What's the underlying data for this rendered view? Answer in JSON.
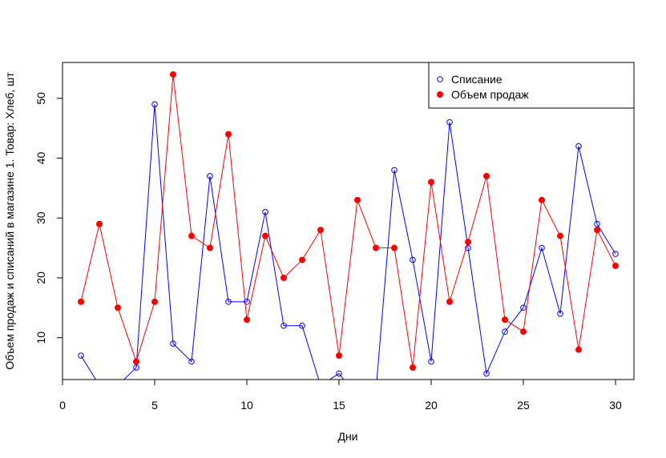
{
  "chart_data": {
    "type": "line",
    "title": "",
    "xlabel": "Дни",
    "ylabel": "Объем продаж и списаний в магазине 1. Товар: Хлеб, шт",
    "xlim": [
      0,
      31
    ],
    "ylim": [
      3,
      56
    ],
    "x_ticks": [
      0,
      5,
      10,
      15,
      20,
      25,
      30
    ],
    "y_ticks": [
      10,
      20,
      30,
      40,
      50
    ],
    "grid": false,
    "legend_position": "top-right",
    "x": [
      1,
      2,
      3,
      4,
      5,
      6,
      7,
      8,
      9,
      10,
      11,
      12,
      13,
      14,
      15,
      16,
      17,
      18,
      19,
      20,
      21,
      22,
      23,
      24,
      25,
      26,
      27,
      28,
      29,
      30
    ],
    "series": [
      {
        "name": "Списание",
        "color": "#0000ff",
        "marker": "open-circle",
        "values": [
          7,
          2,
          2,
          5,
          49,
          9,
          6,
          37,
          16,
          16,
          31,
          12,
          12,
          2,
          4,
          0,
          1,
          38,
          23,
          6,
          46,
          25,
          4,
          11,
          15,
          25,
          14,
          42,
          29,
          24
        ]
      },
      {
        "name": "Объем продаж",
        "color": "#ff0000",
        "marker": "filled-circle",
        "values": [
          16,
          29,
          15,
          6,
          16,
          54,
          27,
          25,
          44,
          13,
          27,
          20,
          23,
          28,
          7,
          33,
          25,
          25,
          5,
          36,
          16,
          26,
          37,
          13,
          11,
          33,
          27,
          8,
          28,
          22
        ]
      }
    ]
  }
}
